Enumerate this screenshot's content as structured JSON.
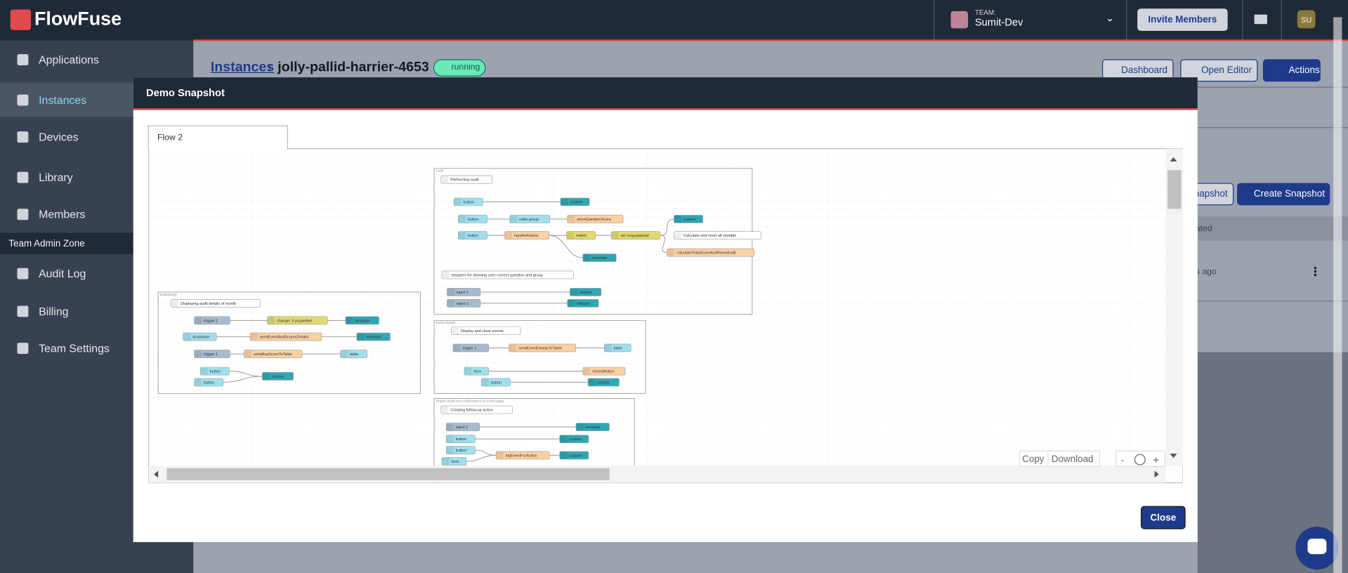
{
  "header": {
    "logo": "FlowFuse",
    "team_label": "TEAM:",
    "team_name": "Sumit-Dev",
    "invite": "Invite Members",
    "avatar": "SU"
  },
  "sidebar": {
    "items": [
      "Applications",
      "Instances",
      "Devices",
      "Library",
      "Members"
    ],
    "admin_zone": "Team Admin Zone",
    "admin_items": [
      "Audit Log",
      "Billing",
      "Team Settings"
    ]
  },
  "page": {
    "breadcrumb": "Instances",
    "instance": "jolly-pallid-harrier-4653",
    "status": "running",
    "buttons": [
      "Dashboard",
      "Open Editor",
      "Actions"
    ],
    "snapshot_button": "napshot",
    "create_snapshot": "Create Snapshot",
    "column": "eated",
    "row_time": "ds ago"
  },
  "modal": {
    "title": "Demo Snapshot",
    "tab": "Flow 2",
    "copy": "Copy",
    "download": "Download",
    "zoom_out": "-",
    "zoom_in": "+",
    "close": "Close"
  },
  "flow": {
    "groups": [
      {
        "name": "Audit",
        "nodes": [
          {
            "label": "Performing audit",
            "color": "#ffffff"
          },
          {
            "label": "button",
            "color": "#9fe0ef"
          },
          {
            "label": "custom",
            "color": "#2fa7b4"
          },
          {
            "label": "button",
            "color": "#9fe0ef"
          },
          {
            "label": "radio-group",
            "color": "#9fe0ef"
          },
          {
            "label": "storeQuestionScore",
            "color": "#fdd0a2"
          },
          {
            "label": "button",
            "color": "#9fe0ef"
          },
          {
            "label": "handleActions",
            "color": "#fdd0a2"
          },
          {
            "label": "switch",
            "color": "#e2d96e"
          },
          {
            "label": "set msg.payload",
            "color": "#e2d96e"
          },
          {
            "label": "custom",
            "color": "#2fa7b4"
          },
          {
            "label": "Calculate and reset all variable",
            "color": "#ffffff"
          },
          {
            "label": "calculateTotalScoreAndResetAudit",
            "color": "#fdd0a2"
          },
          {
            "label": "template",
            "color": "#2fa7b4"
          },
          {
            "label": "steppers for showing user current question and group",
            "color": "#ffffff"
          },
          {
            "label": "inject 1",
            "color": "#a6bbcf"
          },
          {
            "label": "stepper",
            "color": "#2fa7b4"
          },
          {
            "label": "inject 1",
            "color": "#a6bbcf"
          },
          {
            "label": "stepper",
            "color": "#2fa7b4"
          }
        ]
      },
      {
        "name": "Dashboard",
        "nodes": [
          {
            "label": "Displaying audit details of month",
            "color": "#ffffff"
          },
          {
            "label": "trigger 1",
            "color": "#a6bbcf"
          },
          {
            "label": "change: 3 properties",
            "color": "#e2d96e"
          },
          {
            "label": "template",
            "color": "#2fa7b4"
          },
          {
            "label": "dropdown",
            "color": "#9fe0ef"
          },
          {
            "label": "sendEventAndScoresDetails",
            "color": "#fdd0a2"
          },
          {
            "label": "template",
            "color": "#2fa7b4"
          },
          {
            "label": "trigger 1",
            "color": "#a6bbcf"
          },
          {
            "label": "sendAvgScoreToTable",
            "color": "#fdd0a2"
          },
          {
            "label": "table",
            "color": "#9fe0ef"
          },
          {
            "label": "button",
            "color": "#9fe0ef"
          },
          {
            "label": "button",
            "color": "#9fe0ef"
          },
          {
            "label": "control",
            "color": "#2fa7b4"
          }
        ]
      },
      {
        "name": "Event details",
        "nodes": [
          {
            "label": "Display and close events",
            "color": "#ffffff"
          },
          {
            "label": "trigger 1",
            "color": "#a6bbcf"
          },
          {
            "label": "sendEventDetailsToTable",
            "color": "#fdd0a2"
          },
          {
            "label": "table",
            "color": "#9fe0ef"
          },
          {
            "label": "form",
            "color": "#9fe0ef"
          },
          {
            "label": "closedAction",
            "color": "#fdd0a2"
          },
          {
            "label": "button",
            "color": "#9fe0ef"
          },
          {
            "label": "control",
            "color": "#2fa7b4"
          }
        ]
      },
      {
        "name": "Report audit non-conformance in Event page",
        "nodes": [
          {
            "label": "Creating follow-up action",
            "color": "#ffffff"
          },
          {
            "label": "inject 1",
            "color": "#a6bbcf"
          },
          {
            "label": "template",
            "color": "#2fa7b4"
          },
          {
            "label": "button",
            "color": "#9fe0ef"
          },
          {
            "label": "custom",
            "color": "#2fa7b4"
          },
          {
            "label": "button",
            "color": "#9fe0ef"
          },
          {
            "label": "logEventForAction",
            "color": "#fdd0a2"
          },
          {
            "label": "custom",
            "color": "#2fa7b4"
          },
          {
            "label": "form",
            "color": "#9fe0ef"
          }
        ]
      }
    ]
  }
}
